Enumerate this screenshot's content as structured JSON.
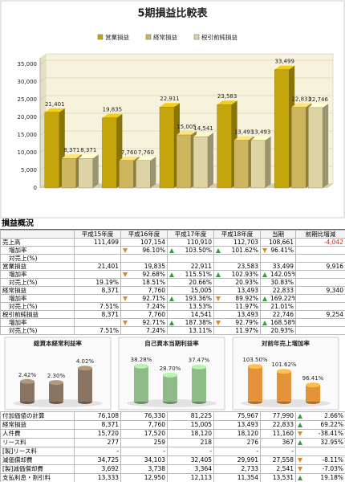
{
  "chart_data": [
    {
      "type": "bar",
      "title": "5期損益比較表",
      "categories": [
        null,
        null,
        null,
        null,
        null
      ],
      "series": [
        {
          "name": "営業損益",
          "color": "#c4a50c",
          "values": [
            21401,
            19835,
            22911,
            23583,
            33499
          ],
          "value_labels": [
            "21,401",
            "19,835",
            "22,911",
            "23,583",
            "33,499"
          ]
        },
        {
          "name": "経常損益",
          "color": "#cdb65e",
          "values": [
            8371,
            7760,
            15005,
            13493,
            22833
          ],
          "value_labels": [
            "8,371",
            "7,760",
            "15,005",
            "13,493",
            "22,833"
          ]
        },
        {
          "name": "税引前純損益",
          "color": "#ddd3a4",
          "values": [
            8371,
            7760,
            14541,
            13493,
            22746
          ],
          "value_labels": [
            "8,371",
            "7,760",
            "14,541",
            "13,493",
            "22,746"
          ]
        }
      ],
      "ylim": [
        0,
        35000
      ],
      "yticks": [
        0,
        {
          "value": 5000,
          "label": "5,000"
        },
        {
          "value": 10000,
          "label": "10,000"
        },
        {
          "value": 15000,
          "label": "15,000"
        },
        {
          "value": 20000,
          "label": "20,000"
        },
        {
          "value": 25000,
          "label": "25,000"
        },
        {
          "value": 30000,
          "label": "30,000"
        },
        {
          "value": 35000,
          "label": "35,000"
        }
      ],
      "grid": true,
      "legend": "top"
    },
    {
      "type": "bar",
      "title": "総資本経常利益率",
      "categories": [
        null,
        null,
        null
      ],
      "values": [
        2.42,
        2.3,
        4.02
      ],
      "value_labels": [
        "2.42%",
        "2.30%",
        "4.02%"
      ],
      "color": "#8a7462",
      "ylim": [
        0,
        5
      ]
    },
    {
      "type": "bar",
      "title": "自己資本当期利益率",
      "categories": [
        null,
        null,
        null
      ],
      "values": [
        38.28,
        28.7,
        37.47
      ],
      "value_labels": [
        "38.28%",
        "28.70%",
        "37.47%"
      ],
      "color": "#8fbb88",
      "ylim": [
        0,
        45
      ]
    },
    {
      "type": "bar",
      "title": "対前年売上増加率",
      "categories": [
        null,
        null,
        null
      ],
      "values": [
        103.5,
        101.62,
        96.41
      ],
      "value_labels": [
        "103.50%",
        "101.62%",
        "96.41%"
      ],
      "color": "#e3943a",
      "ylim": [
        90,
        106
      ]
    }
  ],
  "table1": {
    "title": "損益概況",
    "header": [
      null,
      "平成15年度",
      "平成16年度",
      "平成17年度",
      "平成18年度",
      "当期",
      "前期比増減"
    ],
    "rows": [
      [
        "売上高",
        "111,499",
        "107,154",
        "110,910",
        "112,703",
        "108,661",
        "-4,042"
      ],
      [
        "増加率",
        null,
        "96.10%",
        "103.50%",
        "101.62%",
        "96.41%",
        null
      ],
      [
        "対売上(%)",
        null,
        null,
        null,
        null,
        null,
        null
      ],
      [
        "営業損益",
        "21,401",
        "19,835",
        "22,911",
        "23,583",
        "33,499",
        "9,916"
      ],
      [
        "増加率",
        null,
        "92.68%",
        "115.51%",
        "102.93%",
        "142.05%",
        null
      ],
      [
        "対売上(%)",
        "19.19%",
        "18.51%",
        "20.66%",
        "20.93%",
        "30.83%",
        null
      ],
      [
        "経常損益",
        "8,371",
        "7,760",
        "15,005",
        "13,493",
        "22,833",
        "9,340"
      ],
      [
        "増加率",
        null,
        "92.71%",
        "193.36%",
        "89.92%",
        "169.22%",
        null
      ],
      [
        "対売上(%)",
        "7.51%",
        "7.24%",
        "13.53%",
        "11.97%",
        "21.01%",
        null
      ],
      [
        "税引前純損益",
        "8,371",
        "7,760",
        "14,541",
        "13,493",
        "22,746",
        "9,254"
      ],
      [
        "増加率",
        null,
        "92.71%",
        "187.38%",
        "92.79%",
        "168.58%",
        null
      ],
      [
        "対売上(%)",
        "7.51%",
        "7.24%",
        "13.11%",
        "11.97%",
        "20.93%",
        null
      ]
    ]
  },
  "table2": {
    "rows": [
      [
        "付加価値の計算",
        "76,108",
        "76,330",
        "81,225",
        "75,967",
        "77,990",
        "2.66%"
      ],
      [
        "経常損益",
        "8,371",
        "7,760",
        "15,005",
        "13,493",
        "22,833",
        "69.22%"
      ],
      [
        "人件費",
        "15,720",
        "17,520",
        "18,120",
        "18,120",
        "11,160",
        "-38.41%"
      ],
      [
        "リース料",
        "277",
        "259",
        "218",
        "276",
        "367",
        "32.95%"
      ],
      [
        "[製]リース料",
        "-",
        "-",
        "-",
        "-",
        "-",
        null
      ],
      [
        "減価償却費",
        "34,725",
        "34,103",
        "32,405",
        "29,991",
        "27,558",
        "-8.11%"
      ],
      [
        "[製]減価償却費",
        "3,692",
        "3,738",
        "3,364",
        "2,733",
        "2,541",
        "-7.03%"
      ],
      [
        "支払利息・割引料",
        "13,333",
        "12,950",
        "12,113",
        "11,354",
        "13,531",
        "19.18%"
      ]
    ]
  }
}
